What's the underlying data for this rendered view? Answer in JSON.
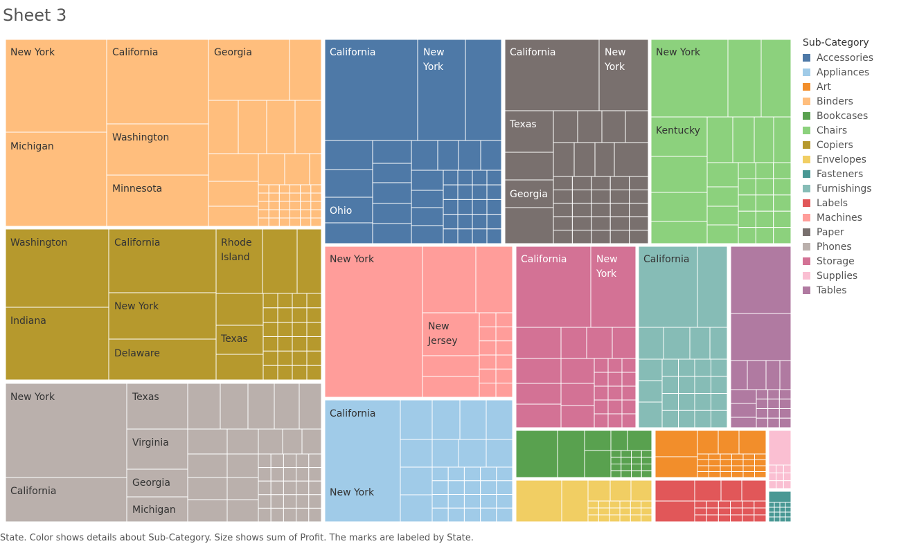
{
  "title": "Sheet 3",
  "caption": "State.  Color shows details about Sub-Category.  Size shows sum of Profit.  The marks are labeled by State.",
  "legend": {
    "title": "Sub-Category",
    "items": [
      {
        "label": "Accessories",
        "color": "#4e79a7"
      },
      {
        "label": "Appliances",
        "color": "#a0cbe8"
      },
      {
        "label": "Art",
        "color": "#f28e2b"
      },
      {
        "label": "Binders",
        "color": "#ffbe7d"
      },
      {
        "label": "Bookcases",
        "color": "#59a14f"
      },
      {
        "label": "Chairs",
        "color": "#8cd17d"
      },
      {
        "label": "Copiers",
        "color": "#b6992d"
      },
      {
        "label": "Envelopes",
        "color": "#f1ce63"
      },
      {
        "label": "Fasteners",
        "color": "#499894"
      },
      {
        "label": "Furnishings",
        "color": "#86bcb6"
      },
      {
        "label": "Labels",
        "color": "#e15759"
      },
      {
        "label": "Machines",
        "color": "#ff9d9a"
      },
      {
        "label": "Paper",
        "color": "#79706e"
      },
      {
        "label": "Phones",
        "color": "#bab0ac"
      },
      {
        "label": "Storage",
        "color": "#d37295"
      },
      {
        "label": "Supplies",
        "color": "#fabfd2"
      },
      {
        "label": "Tables",
        "color": "#b07aa1"
      }
    ]
  },
  "chart_data": {
    "type": "treemap",
    "size_measure": "sum of Profit",
    "color_dimension": "Sub-Category",
    "label_dimension": "State",
    "groups": [
      {
        "sub_category": "Binders",
        "labeled_states": [
          "New York",
          "California",
          "Georgia",
          "Michigan",
          "Washington",
          "Minnesota"
        ]
      },
      {
        "sub_category": "Copiers",
        "labeled_states": [
          "Washington",
          "California",
          "Rhode Island",
          "Indiana",
          "New York",
          "Texas",
          "Delaware"
        ]
      },
      {
        "sub_category": "Phones",
        "labeled_states": [
          "New York",
          "Texas",
          "Virginia",
          "California",
          "Georgia",
          "Michigan"
        ]
      },
      {
        "sub_category": "Accessories",
        "labeled_states": [
          "California",
          "New York",
          "Ohio"
        ]
      },
      {
        "sub_category": "Paper",
        "labeled_states": [
          "California",
          "New York",
          "Texas",
          "Georgia"
        ]
      },
      {
        "sub_category": "Chairs",
        "labeled_states": [
          "New York",
          "Kentucky"
        ]
      },
      {
        "sub_category": "Machines",
        "labeled_states": [
          "New York",
          "New Jersey"
        ]
      },
      {
        "sub_category": "Appliances",
        "labeled_states": [
          "California",
          "New York"
        ]
      },
      {
        "sub_category": "Storage",
        "labeled_states": [
          "California",
          "New York"
        ]
      },
      {
        "sub_category": "Furnishings",
        "labeled_states": [
          "California"
        ]
      },
      {
        "sub_category": "Tables",
        "labeled_states": []
      },
      {
        "sub_category": "Bookcases",
        "labeled_states": []
      },
      {
        "sub_category": "Art",
        "labeled_states": []
      },
      {
        "sub_category": "Supplies",
        "labeled_states": []
      },
      {
        "sub_category": "Envelopes",
        "labeled_states": []
      },
      {
        "sub_category": "Labels",
        "labeled_states": []
      },
      {
        "sub_category": "Fasteners",
        "labeled_states": []
      }
    ]
  }
}
